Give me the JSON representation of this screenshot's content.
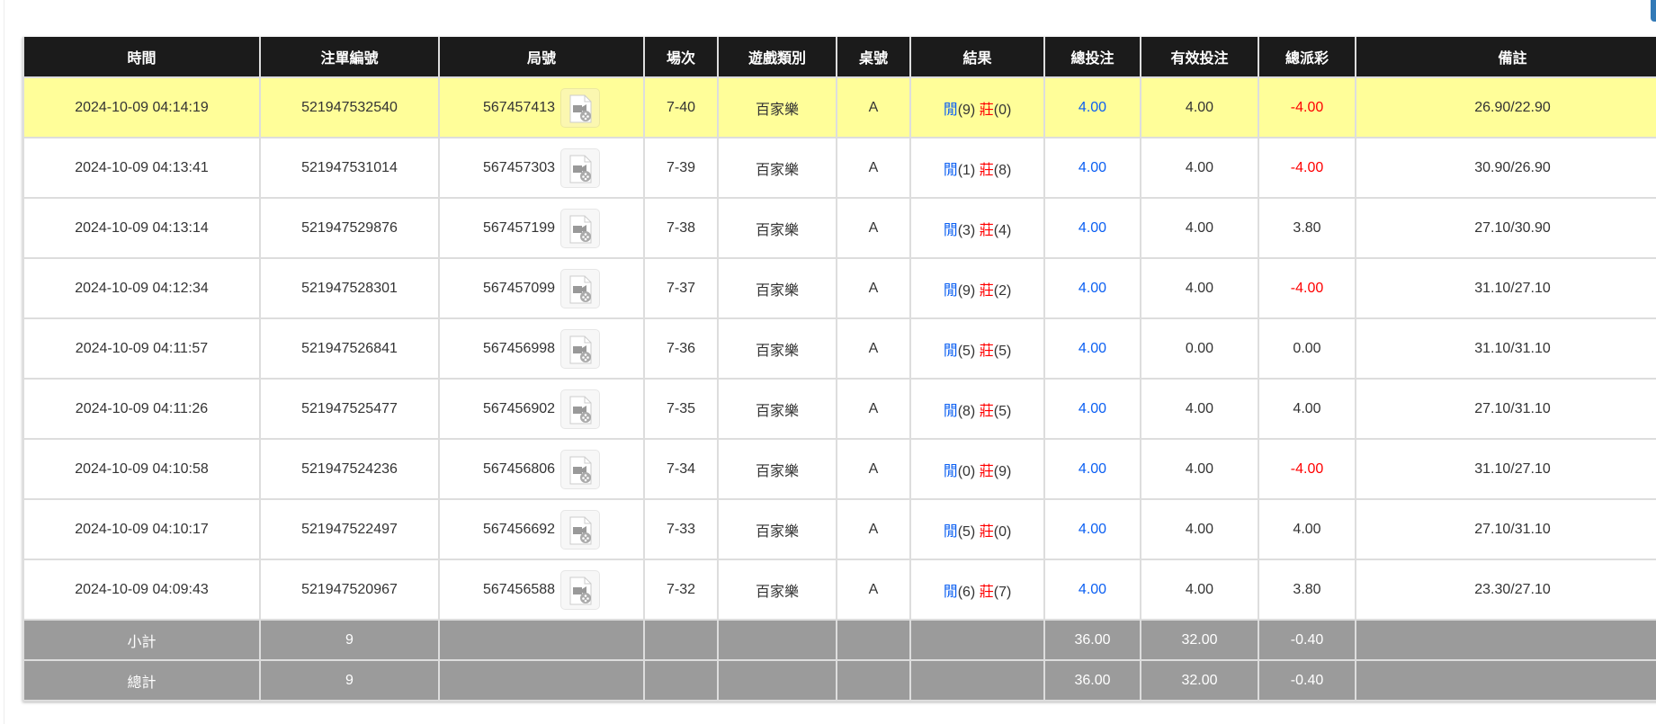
{
  "columns": [
    "時間",
    "注單編號",
    "局號",
    "場次",
    "遊戲類別",
    "桌號",
    "結果",
    "總投注",
    "有效投注",
    "總派彩",
    "備註"
  ],
  "result_labels": {
    "player": "閒",
    "banker": "莊"
  },
  "rows": [
    {
      "time": "2024-10-09 04:14:19",
      "bet_id": "521947532540",
      "round": "567457413",
      "shoe": "7-40",
      "game": "百家樂",
      "table": "A",
      "p": "(9)",
      "b": "(0)",
      "bet": "4.00",
      "valid": "4.00",
      "payout": "-4.00",
      "note": "26.90/22.90",
      "payout_negative": true,
      "highlight": true
    },
    {
      "time": "2024-10-09 04:13:41",
      "bet_id": "521947531014",
      "round": "567457303",
      "shoe": "7-39",
      "game": "百家樂",
      "table": "A",
      "p": "(1)",
      "b": "(8)",
      "bet": "4.00",
      "valid": "4.00",
      "payout": "-4.00",
      "note": "30.90/26.90",
      "payout_negative": true
    },
    {
      "time": "2024-10-09 04:13:14",
      "bet_id": "521947529876",
      "round": "567457199",
      "shoe": "7-38",
      "game": "百家樂",
      "table": "A",
      "p": "(3)",
      "b": "(4)",
      "bet": "4.00",
      "valid": "4.00",
      "payout": "3.80",
      "note": "27.10/30.90"
    },
    {
      "time": "2024-10-09 04:12:34",
      "bet_id": "521947528301",
      "round": "567457099",
      "shoe": "7-37",
      "game": "百家樂",
      "table": "A",
      "p": "(9)",
      "b": "(2)",
      "bet": "4.00",
      "valid": "4.00",
      "payout": "-4.00",
      "note": "31.10/27.10",
      "payout_negative": true
    },
    {
      "time": "2024-10-09 04:11:57",
      "bet_id": "521947526841",
      "round": "567456998",
      "shoe": "7-36",
      "game": "百家樂",
      "table": "A",
      "p": "(5)",
      "b": "(5)",
      "bet": "4.00",
      "valid": "0.00",
      "payout": "0.00",
      "note": "31.10/31.10"
    },
    {
      "time": "2024-10-09 04:11:26",
      "bet_id": "521947525477",
      "round": "567456902",
      "shoe": "7-35",
      "game": "百家樂",
      "table": "A",
      "p": "(8)",
      "b": "(5)",
      "bet": "4.00",
      "valid": "4.00",
      "payout": "4.00",
      "note": "27.10/31.10"
    },
    {
      "time": "2024-10-09 04:10:58",
      "bet_id": "521947524236",
      "round": "567456806",
      "shoe": "7-34",
      "game": "百家樂",
      "table": "A",
      "p": "(0)",
      "b": "(9)",
      "bet": "4.00",
      "valid": "4.00",
      "payout": "-4.00",
      "note": "31.10/27.10",
      "payout_negative": true
    },
    {
      "time": "2024-10-09 04:10:17",
      "bet_id": "521947522497",
      "round": "567456692",
      "shoe": "7-33",
      "game": "百家樂",
      "table": "A",
      "p": "(5)",
      "b": "(0)",
      "bet": "4.00",
      "valid": "4.00",
      "payout": "4.00",
      "note": "27.10/31.10"
    },
    {
      "time": "2024-10-09 04:09:43",
      "bet_id": "521947520967",
      "round": "567456588",
      "shoe": "7-32",
      "game": "百家樂",
      "table": "A",
      "p": "(6)",
      "b": "(7)",
      "bet": "4.00",
      "valid": "4.00",
      "payout": "3.80",
      "note": "23.30/27.10"
    }
  ],
  "subtotal": {
    "label": "小計",
    "count": "9",
    "bet": "36.00",
    "valid": "32.00",
    "payout": "-0.40"
  },
  "total": {
    "label": "總計",
    "count": "9",
    "bet": "36.00",
    "valid": "32.00",
    "payout": "-0.40"
  },
  "colors": {
    "header": "#1b1b1b",
    "highlight": "#fffe99",
    "summary": "#9b9b9b",
    "blue": "#0b5ff2",
    "red": "#ff0000"
  },
  "icons": {
    "replay": "video-file-icon"
  }
}
